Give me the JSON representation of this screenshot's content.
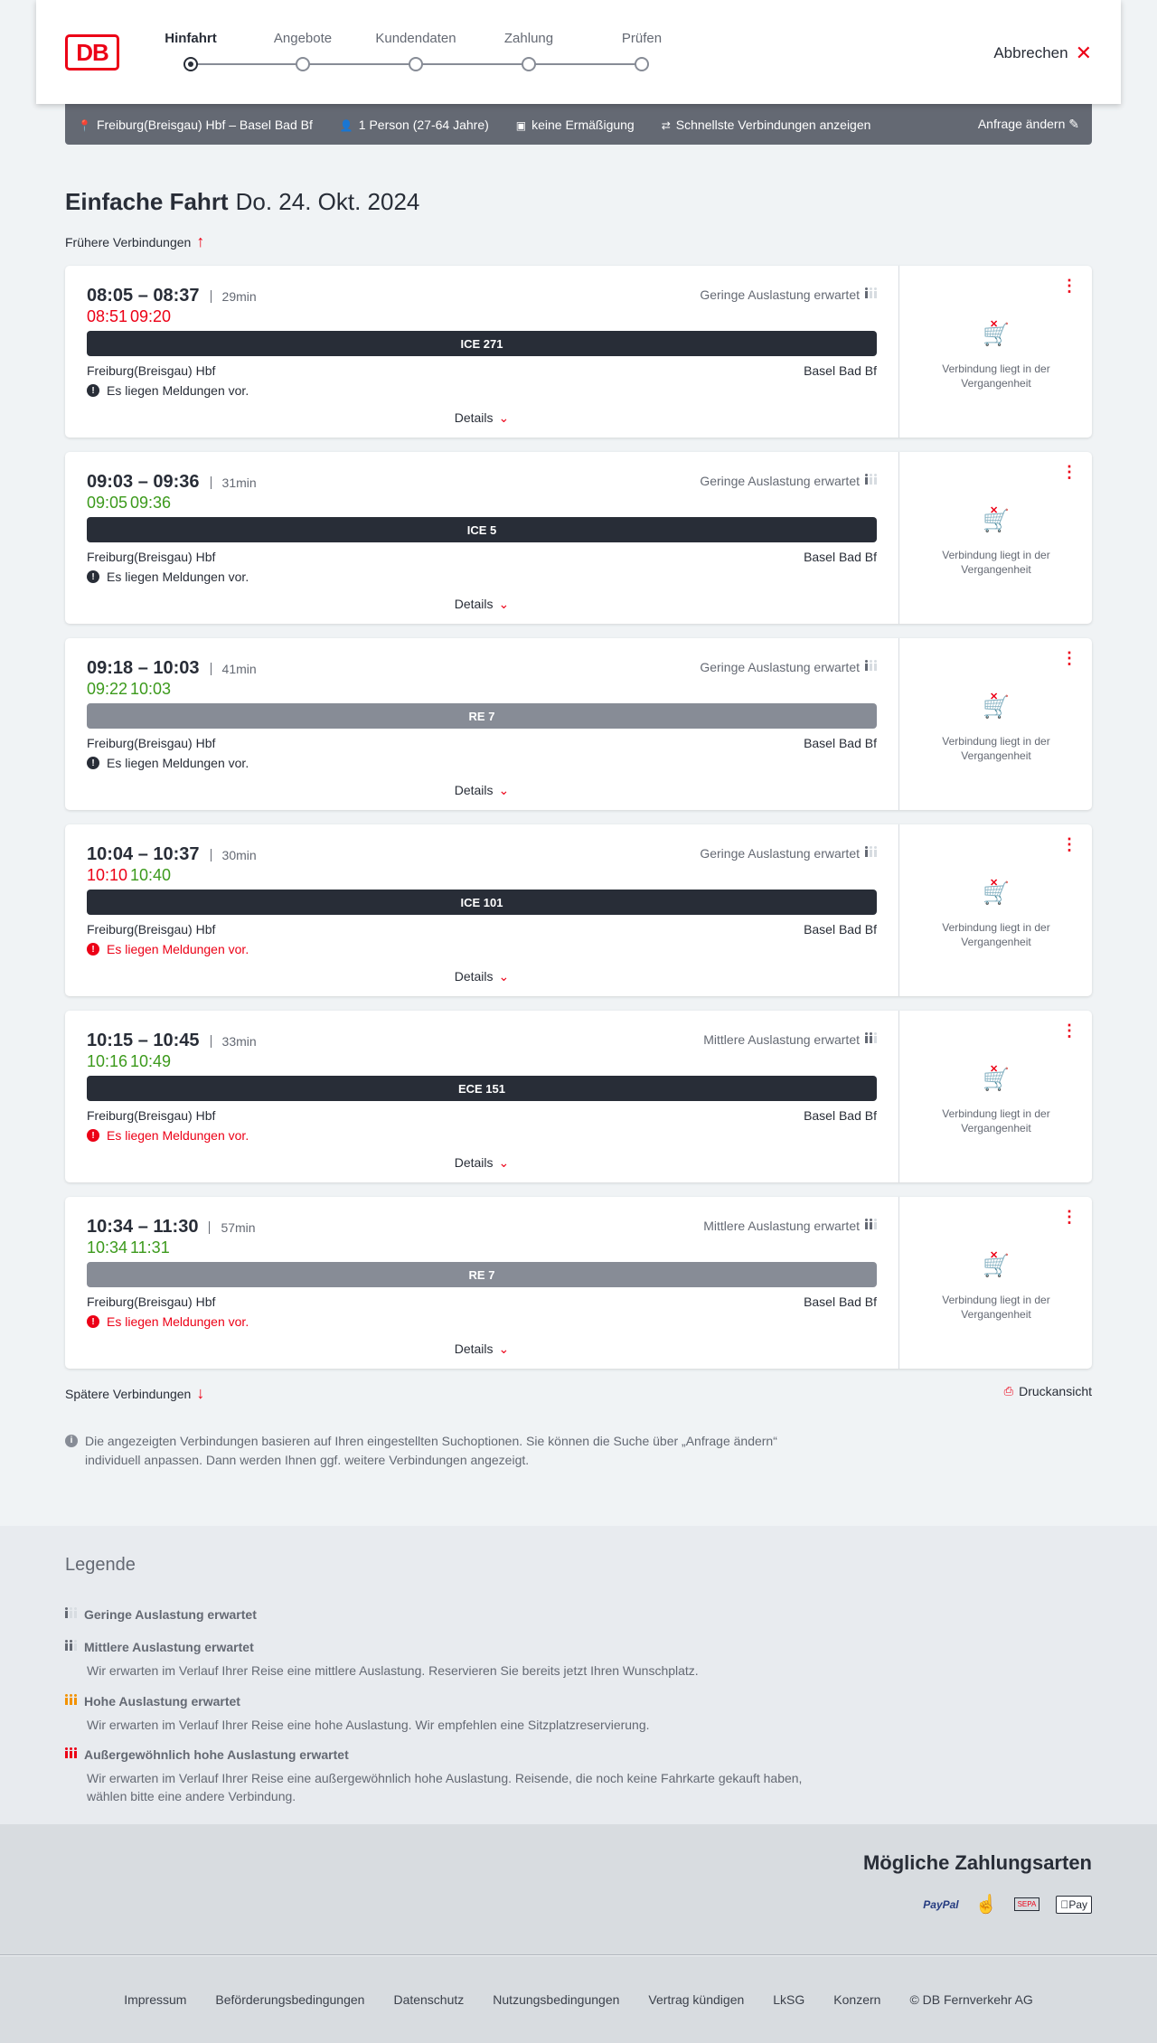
{
  "header": {
    "logo": "DB",
    "steps": [
      "Hinfahrt",
      "Angebote",
      "Kundendaten",
      "Zahlung",
      "Prüfen"
    ],
    "active_step": 0,
    "cancel": "Abbrechen"
  },
  "search_bar": {
    "route": "Freiburg(Breisgau) Hbf – Basel Bad Bf",
    "persons": "1 Person (27-64 Jahre)",
    "discount": "keine Ermäßigung",
    "option": "Schnellste Verbindungen anzeigen",
    "edit": "Anfrage ändern"
  },
  "title": {
    "trip": "Einfache Fahrt",
    "date": "Do. 24. Okt. 2024"
  },
  "earlier": "Frühere Verbindungen",
  "later": "Spätere Verbindungen",
  "print": "Druckansicht",
  "colors": {
    "red": "#ec0016",
    "green": "#3c9a1c",
    "dark": "#282d37",
    "regional": "#878c96"
  },
  "connections": [
    {
      "times": "08:05 – 08:37",
      "duration": "29min",
      "rt_dep": "08:51",
      "rt_arr": "09:20",
      "rt_dep_late": true,
      "rt_arr_late": true,
      "load": "Geringe Auslastung erwartet",
      "load_level": 1,
      "train": "ICE 271",
      "regional": false,
      "from": "Freiburg(Breisgau) Hbf",
      "to": "Basel Bad Bf",
      "message": "Es liegen Meldungen vor.",
      "message_red": false,
      "details": "Details",
      "status": "Verbindung liegt in der Vergangenheit"
    },
    {
      "times": "09:03 – 09:36",
      "duration": "31min",
      "rt_dep": "09:05",
      "rt_arr": "09:36",
      "rt_dep_late": false,
      "rt_arr_late": false,
      "load": "Geringe Auslastung erwartet",
      "load_level": 1,
      "train": "ICE 5",
      "regional": false,
      "from": "Freiburg(Breisgau) Hbf",
      "to": "Basel Bad Bf",
      "message": "Es liegen Meldungen vor.",
      "message_red": false,
      "details": "Details",
      "status": "Verbindung liegt in der Vergangenheit"
    },
    {
      "times": "09:18 – 10:03",
      "duration": "41min",
      "rt_dep": "09:22",
      "rt_arr": "10:03",
      "rt_dep_late": false,
      "rt_arr_late": false,
      "load": "Geringe Auslastung erwartet",
      "load_level": 1,
      "train": "RE 7",
      "regional": true,
      "from": "Freiburg(Breisgau) Hbf",
      "to": "Basel Bad Bf",
      "message": "Es liegen Meldungen vor.",
      "message_red": false,
      "details": "Details",
      "status": "Verbindung liegt in der Vergangenheit"
    },
    {
      "times": "10:04 – 10:37",
      "duration": "30min",
      "rt_dep": "10:10",
      "rt_arr": "10:40",
      "rt_dep_late": true,
      "rt_arr_late": false,
      "load": "Geringe Auslastung erwartet",
      "load_level": 1,
      "train": "ICE 101",
      "regional": false,
      "from": "Freiburg(Breisgau) Hbf",
      "to": "Basel Bad Bf",
      "message": "Es liegen Meldungen vor.",
      "message_red": true,
      "details": "Details",
      "status": "Verbindung liegt in der Vergangenheit"
    },
    {
      "times": "10:15 – 10:45",
      "duration": "33min",
      "rt_dep": "10:16",
      "rt_arr": "10:49",
      "rt_dep_late": false,
      "rt_arr_late": false,
      "load": "Mittlere Auslastung erwartet",
      "load_level": 2,
      "train": "ECE 151",
      "regional": false,
      "from": "Freiburg(Breisgau) Hbf",
      "to": "Basel Bad Bf",
      "message": "Es liegen Meldungen vor.",
      "message_red": true,
      "details": "Details",
      "status": "Verbindung liegt in der Vergangenheit"
    },
    {
      "times": "10:34 – 11:30",
      "duration": "57min",
      "rt_dep": "10:34",
      "rt_arr": "11:31",
      "rt_dep_late": false,
      "rt_arr_late": false,
      "load": "Mittlere Auslastung erwartet",
      "load_level": 2,
      "train": "RE 7",
      "regional": true,
      "from": "Freiburg(Breisgau) Hbf",
      "to": "Basel Bad Bf",
      "message": "Es liegen Meldungen vor.",
      "message_red": true,
      "details": "Details",
      "status": "Verbindung liegt in der Vergangenheit"
    }
  ],
  "note": "Die angezeigten Verbindungen basieren auf Ihren eingestellten Suchoptionen. Sie können die Suche über „Anfrage ändern“ individuell anpassen. Dann werden Ihnen ggf. weitere Verbindungen angezeigt.",
  "legend": {
    "title": "Legende",
    "items": [
      {
        "title": "Geringe Auslastung erwartet",
        "text": "",
        "level": 1,
        "color": "#646973"
      },
      {
        "title": "Mittlere Auslastung erwartet",
        "text": "Wir erwarten im Verlauf Ihrer Reise eine mittlere Auslastung. Reservieren Sie bereits jetzt Ihren Wunschplatz.",
        "level": 2,
        "color": "#646973"
      },
      {
        "title": "Hohe Auslastung erwartet",
        "text": "Wir erwarten im Verlauf Ihrer Reise eine hohe Auslastung. Wir empfehlen eine Sitzplatzreservierung.",
        "level": 3,
        "color": "#f39200"
      },
      {
        "title": "Außergewöhnlich hohe Auslastung erwartet",
        "text": "Wir erwarten im Verlauf Ihrer Reise eine außergewöhnlich hohe Auslastung. Reisende, die noch keine Fahrkarte gekauft haben, wählen bitte eine andere Verbindung.",
        "level": 4,
        "color": "#ec0016"
      }
    ]
  },
  "payment": {
    "title": "Mögliche Zahlungsarten",
    "methods": [
      "PayPal",
      "Kreditkarte",
      "SEPA",
      "Pay"
    ]
  },
  "footer": [
    "Impressum",
    "Beförderungsbedingungen",
    "Datenschutz",
    "Nutzungsbedingungen",
    "Vertrag kündigen",
    "LkSG",
    "Konzern",
    "© DB Fernverkehr AG"
  ]
}
